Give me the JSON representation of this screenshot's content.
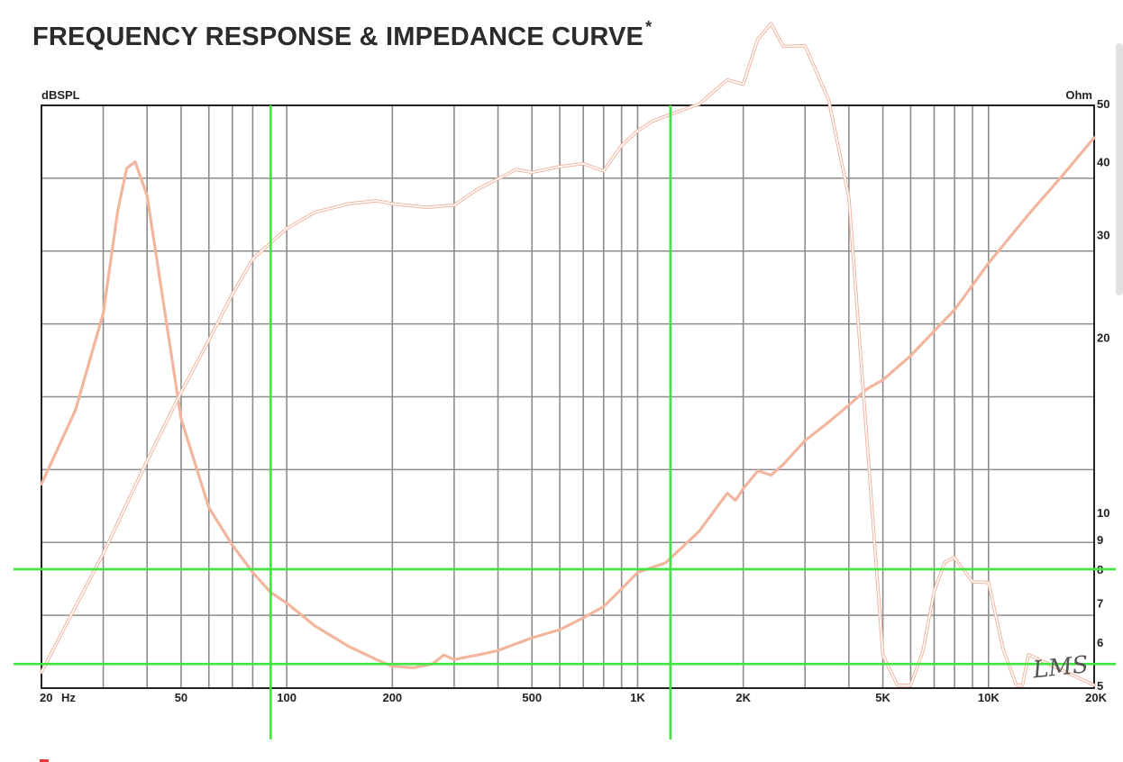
{
  "page": {
    "title": "FREQUENCY RESPONSE & IMPEDANCE CURVE",
    "title_mark": "*",
    "logo_text": "LMS"
  },
  "chart_data": {
    "type": "line",
    "title": "FREQUENCY RESPONSE & IMPEDANCE CURVE*",
    "xlabel": "Hz",
    "ylabel_left": "dBSPL",
    "ylabel_right": "Ohm",
    "x_scale": "log",
    "xlim": [
      20,
      20000
    ],
    "x_tick_labels": [
      {
        "value": 20,
        "label": "20"
      },
      {
        "value": 50,
        "label": "50"
      },
      {
        "value": 100,
        "label": "100"
      },
      {
        "value": 200,
        "label": "200"
      },
      {
        "value": 500,
        "label": "500"
      },
      {
        "value": 1000,
        "label": "1K"
      },
      {
        "value": 2000,
        "label": "2K"
      },
      {
        "value": 5000,
        "label": "5K"
      },
      {
        "value": 10000,
        "label": "10K"
      },
      {
        "value": 20000,
        "label": "20K"
      }
    ],
    "x_unit_label": "Hz",
    "x_gridlines": [
      20,
      30,
      40,
      50,
      60,
      70,
      80,
      90,
      100,
      200,
      300,
      400,
      500,
      600,
      700,
      800,
      900,
      1000,
      2000,
      3000,
      4000,
      5000,
      6000,
      7000,
      8000,
      9000,
      10000,
      20000
    ],
    "right_scale": "log",
    "right_ylim": [
      5,
      50
    ],
    "right_tick_labels": [
      {
        "value": 5,
        "label": "5"
      },
      {
        "value": 6,
        "label": "6"
      },
      {
        "value": 7,
        "label": "7"
      },
      {
        "value": 8,
        "label": "8"
      },
      {
        "value": 9,
        "label": "9"
      },
      {
        "value": 10,
        "label": "10"
      },
      {
        "value": 20,
        "label": "20"
      },
      {
        "value": 30,
        "label": "30"
      },
      {
        "value": 40,
        "label": "40"
      },
      {
        "value": 50,
        "label": "50"
      }
    ],
    "left_grid_divisions": 8,
    "grid": true,
    "series": [
      {
        "role": "impedance",
        "axis": "right",
        "style": "solid",
        "color": "#f2b59e",
        "x": [
          20,
          25,
          30,
          33,
          35,
          37,
          40,
          45,
          50,
          60,
          70,
          80,
          90,
          100,
          120,
          150,
          180,
          200,
          230,
          260,
          280,
          300,
          350,
          400,
          500,
          600,
          700,
          800,
          900,
          1000,
          1200,
          1500,
          1800,
          1900,
          2000,
          2200,
          2400,
          2600,
          3000,
          3500,
          4000,
          4500,
          5000,
          6000,
          8000,
          10000,
          13000,
          16000,
          20000
        ],
        "y": [
          11.2,
          15,
          22,
          33,
          39,
          40,
          35,
          22,
          14.5,
          10.2,
          8.8,
          7.9,
          7.3,
          7.0,
          6.4,
          5.9,
          5.6,
          5.45,
          5.42,
          5.5,
          5.7,
          5.6,
          5.7,
          5.8,
          6.1,
          6.3,
          6.6,
          6.9,
          7.4,
          7.9,
          8.2,
          9.3,
          10.8,
          10.5,
          11.0,
          11.8,
          11.6,
          12.1,
          13.3,
          14.3,
          15.3,
          16.3,
          16.9,
          18.6,
          22.3,
          26.8,
          32.5,
          37.5,
          44
        ]
      },
      {
        "role": "frequency-response",
        "axis": "left",
        "style": "double outline",
        "color": "#f2b59e",
        "x": [
          20,
          30,
          40,
          50,
          60,
          70,
          80,
          100,
          120,
          150,
          180,
          200,
          250,
          300,
          350,
          400,
          450,
          500,
          600,
          700,
          800,
          900,
          1000,
          1100,
          1200,
          1500,
          1800,
          2000,
          2200,
          2400,
          2600,
          3000,
          3500,
          4000,
          4500,
          5000,
          5500,
          6000,
          6500,
          7000,
          7500,
          8000,
          9000,
          10000,
          11000,
          12000,
          12500,
          13000,
          20000
        ],
        "y": [
          0.22,
          1.85,
          3.12,
          4.06,
          4.78,
          5.41,
          5.89,
          6.31,
          6.53,
          6.65,
          6.69,
          6.65,
          6.6,
          6.63,
          6.85,
          6.99,
          7.12,
          7.08,
          7.16,
          7.2,
          7.1,
          7.45,
          7.65,
          7.78,
          7.85,
          8.02,
          8.35,
          8.29,
          8.91,
          9.12,
          8.81,
          8.82,
          8.08,
          6.73,
          3.42,
          0.45,
          0.04,
          0.04,
          0.51,
          1.33,
          1.73,
          1.79,
          1.46,
          1.45,
          0.54,
          0.04,
          0.04,
          0.46,
          0.04
        ]
      }
    ],
    "markers": {
      "color": "#3ee63e",
      "vertical_hz": [
        90,
        1240
      ],
      "horizontal_ohm": [
        8,
        5.5
      ]
    }
  }
}
